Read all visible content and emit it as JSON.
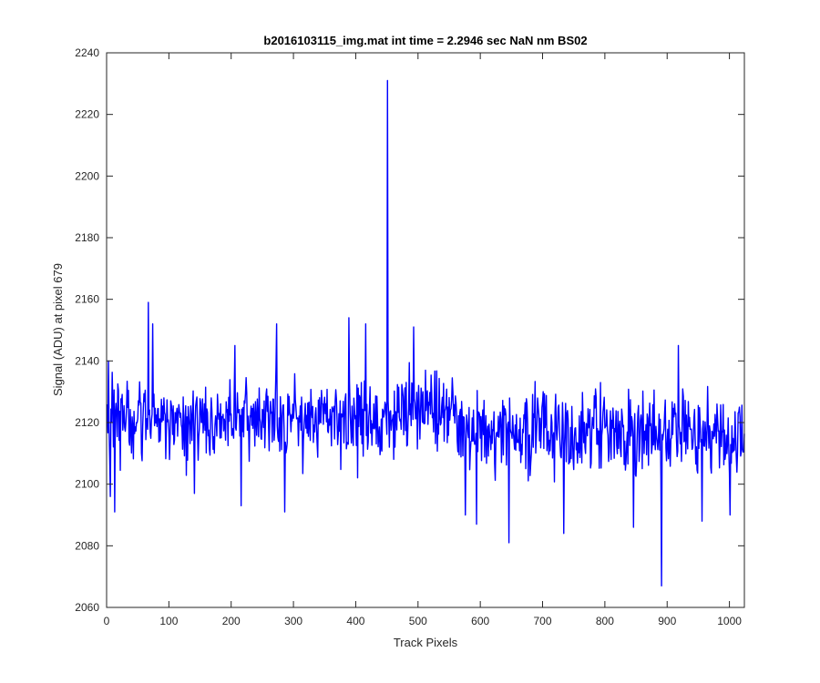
{
  "chart_data": {
    "type": "line",
    "title": "b2016103115_img.mat int time = 2.2946 sec  NaN nm BS02",
    "xlabel": "Track Pixels",
    "ylabel": "Signal (ADU) at pixel 679",
    "xlim": [
      0,
      1024
    ],
    "ylim": [
      2060,
      2240
    ],
    "x_ticks": [
      "0",
      "100",
      "200",
      "300",
      "400",
      "500",
      "600",
      "700",
      "800",
      "900",
      "1000"
    ],
    "y_ticks": [
      "2060",
      "2080",
      "2100",
      "2120",
      "2140",
      "2160",
      "2180",
      "2200",
      "2220",
      "2240"
    ],
    "grid": false,
    "series": [
      {
        "color": "#0000ff",
        "n_points": 1024,
        "baseline_segments": [
          {
            "x": [
              0,
              450
            ],
            "mean": 2121
          },
          {
            "x": [
              450,
              560
            ],
            "mean": 2124
          },
          {
            "x": [
              560,
              1024
            ],
            "mean": 2117
          }
        ],
        "notable_points": [
          {
            "x": 2,
            "y": 2140
          },
          {
            "x": 5,
            "y": 2096
          },
          {
            "x": 12,
            "y": 2091
          },
          {
            "x": 66,
            "y": 2159
          },
          {
            "x": 73,
            "y": 2152
          },
          {
            "x": 100,
            "y": 2108
          },
          {
            "x": 140,
            "y": 2097
          },
          {
            "x": 205,
            "y": 2145
          },
          {
            "x": 215,
            "y": 2093
          },
          {
            "x": 272,
            "y": 2152
          },
          {
            "x": 285,
            "y": 2091
          },
          {
            "x": 388,
            "y": 2154
          },
          {
            "x": 415,
            "y": 2152
          },
          {
            "x": 450,
            "y": 2231
          },
          {
            "x": 453,
            "y": 2112
          },
          {
            "x": 492,
            "y": 2151
          },
          {
            "x": 575,
            "y": 2090
          },
          {
            "x": 593,
            "y": 2087
          },
          {
            "x": 645,
            "y": 2081
          },
          {
            "x": 733,
            "y": 2084
          },
          {
            "x": 845,
            "y": 2086
          },
          {
            "x": 890,
            "y": 2067
          },
          {
            "x": 917,
            "y": 2145
          },
          {
            "x": 955,
            "y": 2088
          },
          {
            "x": 1000,
            "y": 2090
          }
        ]
      }
    ]
  }
}
